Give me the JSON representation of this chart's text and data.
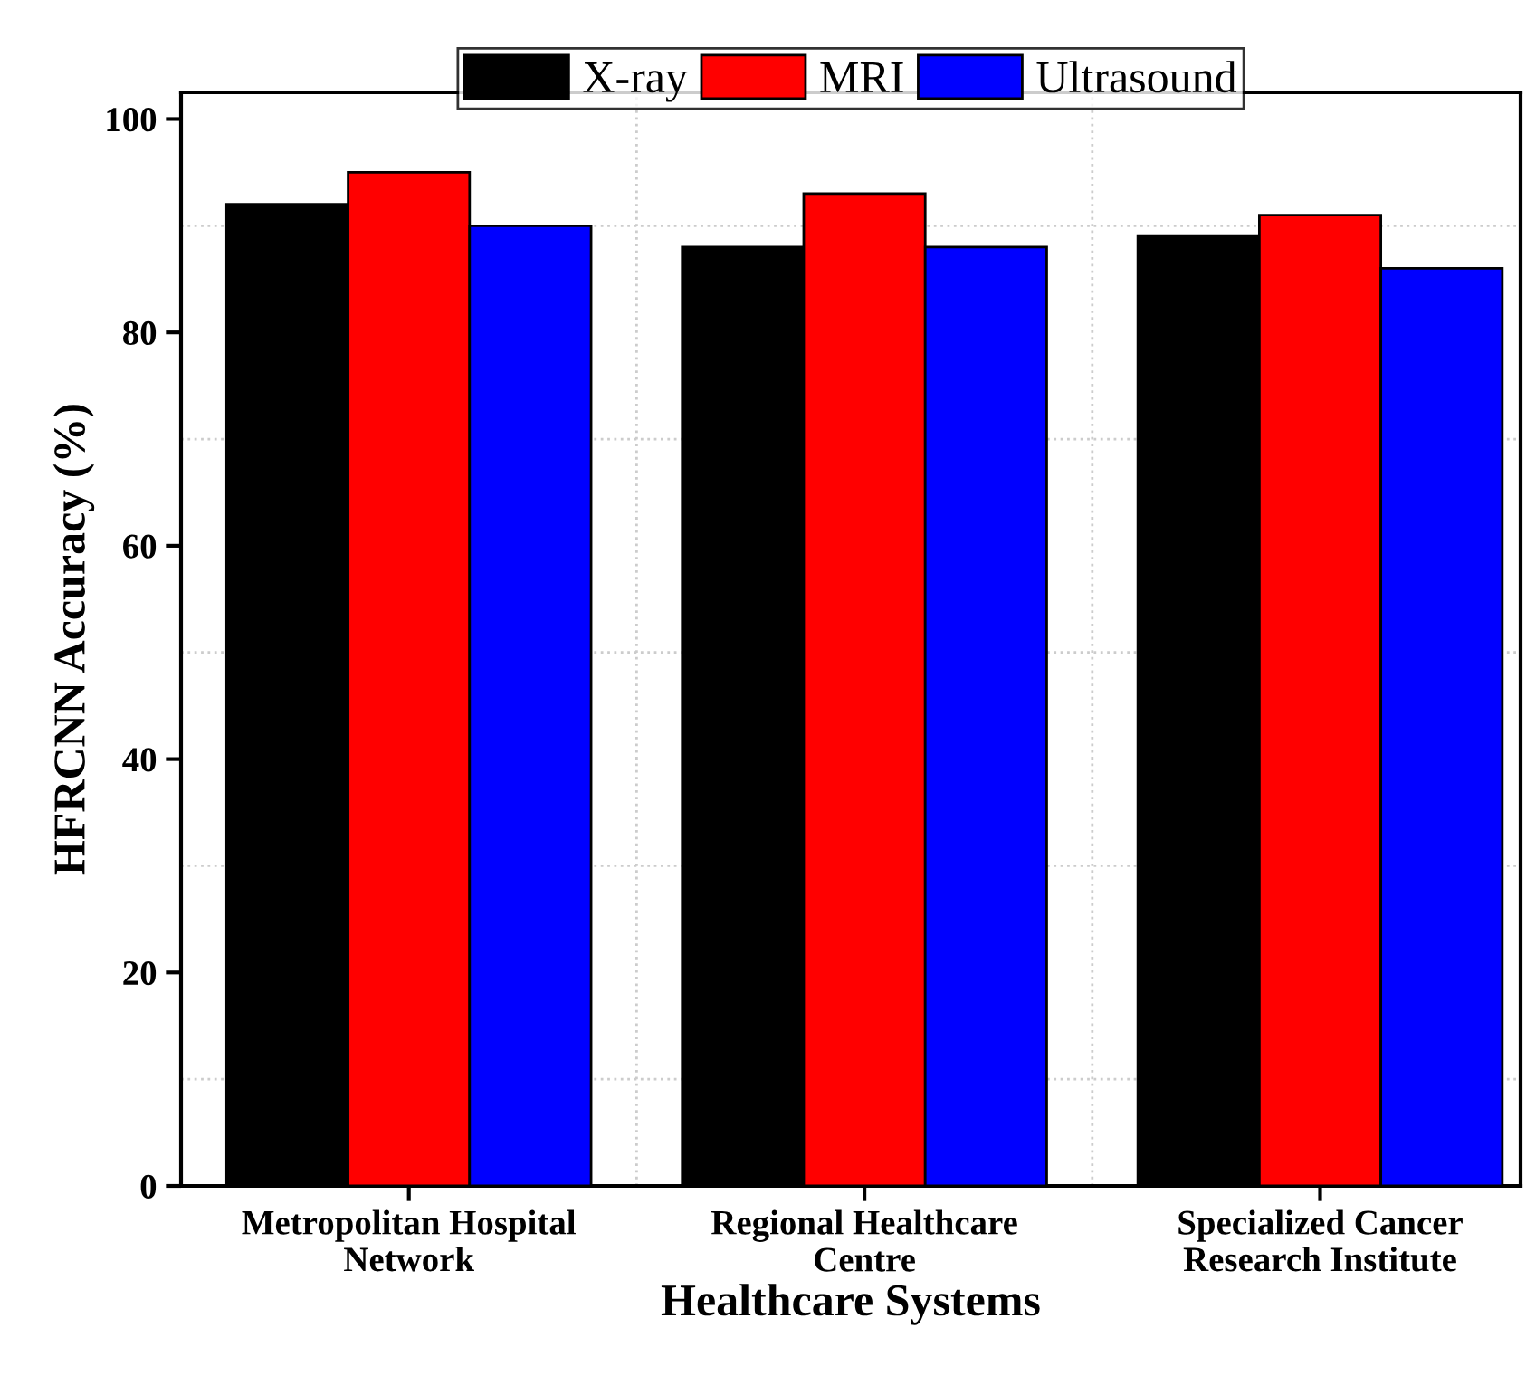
{
  "chart_data": {
    "type": "bar",
    "xlabel": "Healthcare Systems",
    "ylabel": "HFRCNN Accuracy (%)",
    "categories": [
      "Metropolitan Hospital\nNetwork",
      "Regional Healthcare\nCentre",
      "Specialized Cancer\nResearch Institute"
    ],
    "series": [
      {
        "name": "X-ray",
        "color": "#000000",
        "values": [
          92,
          88,
          89
        ]
      },
      {
        "name": "MRI",
        "color": "#ff0000",
        "values": [
          95,
          93,
          91
        ]
      },
      {
        "name": "Ultrasound",
        "color": "#0000ff",
        "values": [
          90,
          88,
          86
        ]
      }
    ],
    "ylim": [
      0,
      102.5
    ],
    "yticks": [
      0,
      20,
      40,
      60,
      80,
      100
    ],
    "grid": true,
    "legend": "top"
  }
}
